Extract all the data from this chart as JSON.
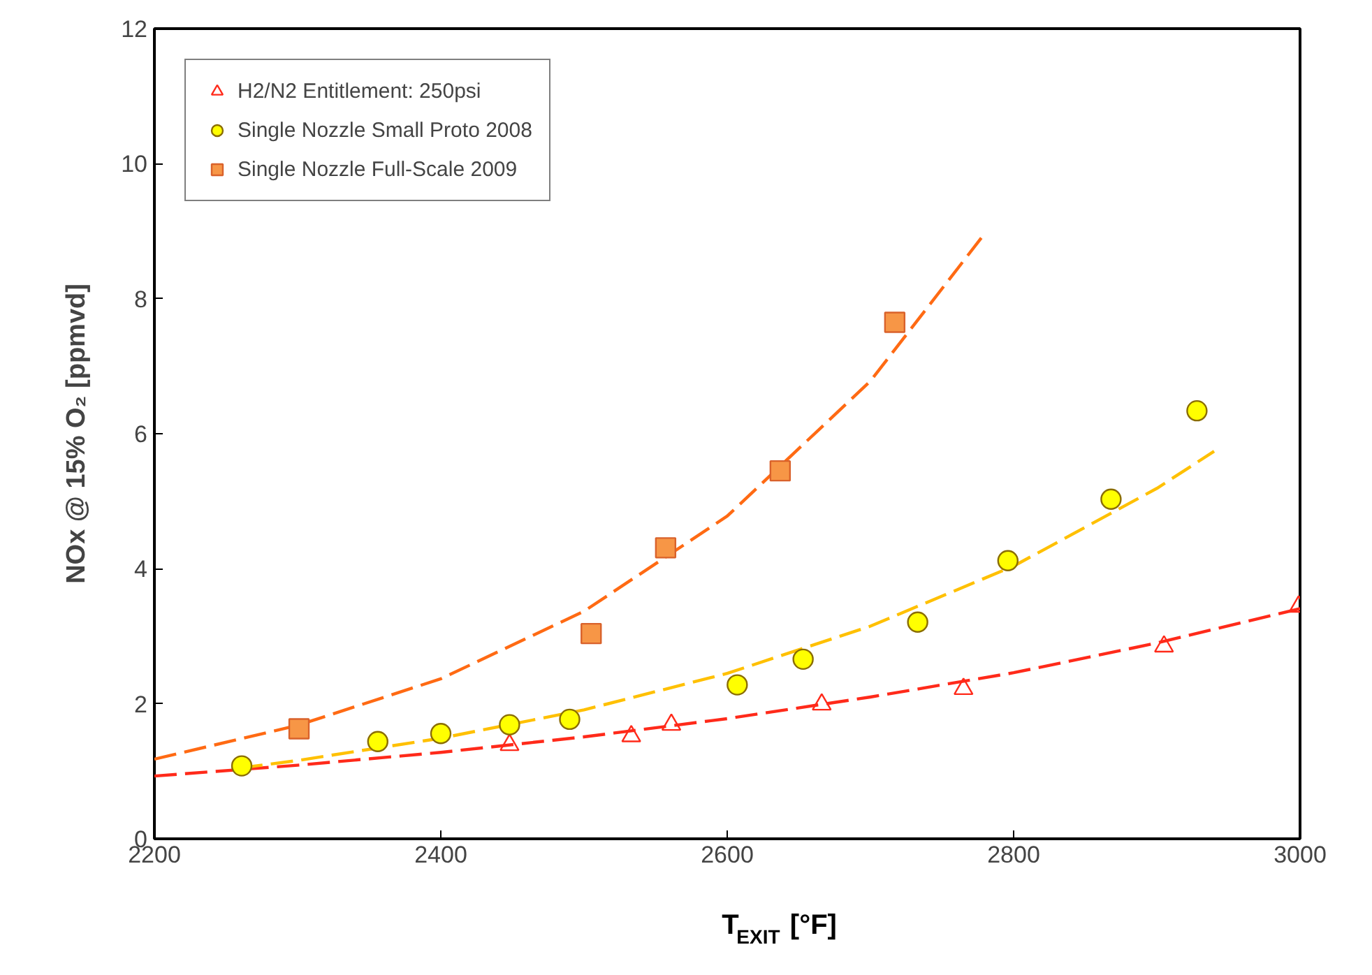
{
  "chart_data": {
    "type": "scatter",
    "xlabel": "T$_{EXIT}$ [°F]",
    "ylabel": "NOx @ 15% O₂ [ppmvd]",
    "xlim": [
      2200,
      3000
    ],
    "xticks": [
      2200,
      2400,
      2600,
      2800,
      3000
    ],
    "ylim": [
      0,
      12
    ],
    "yticks": [
      0,
      2,
      4,
      6,
      8,
      10,
      12
    ],
    "grid": false,
    "legend": "top left",
    "series": [
      {
        "type": "line",
        "color": "#ff2a1a",
        "line_style": "dashed",
        "marker": "none",
        "x": [
          2200,
          2300,
          2400,
          2500,
          2600,
          2700,
          2800,
          2900,
          3000
        ],
        "values": [
          0.93,
          1.09,
          1.28,
          1.51,
          1.78,
          2.1,
          2.46,
          2.9,
          3.41
        ]
      },
      {
        "type": "line",
        "color": "#ffc000",
        "line_style": "dashed",
        "marker": "none",
        "x": [
          2260,
          2300,
          2400,
          2500,
          2600,
          2700,
          2800,
          2900,
          2940
        ],
        "values": [
          1.05,
          1.16,
          1.49,
          1.91,
          2.45,
          3.15,
          4.04,
          5.19,
          5.74
        ]
      },
      {
        "type": "line",
        "color": "#ff6a13",
        "line_style": "dashed",
        "marker": "none",
        "x": [
          2200,
          2300,
          2400,
          2500,
          2600,
          2700,
          2780
        ],
        "values": [
          1.18,
          1.68,
          2.37,
          3.37,
          4.78,
          6.78,
          8.97
        ]
      },
      {
        "name": "H2/N2 Entitlement: 250psi",
        "color": "#ff2a1a",
        "marker": "triangle",
        "x": [
          2448,
          2533,
          2561,
          2666,
          2765,
          2905,
          2999
        ],
        "values": [
          1.39,
          1.52,
          1.69,
          1.99,
          2.22,
          2.85,
          3.44
        ]
      },
      {
        "name": "Single Nozzle Small Proto 2008",
        "color": "#ffff00",
        "marker": "circle",
        "x": [
          2261,
          2356,
          2400,
          2448,
          2490,
          2607,
          2653,
          2733,
          2796,
          2868,
          2928
        ],
        "values": [
          1.08,
          1.44,
          1.56,
          1.69,
          1.77,
          2.28,
          2.66,
          3.21,
          4.12,
          5.03,
          6.34
        ]
      },
      {
        "name": "Single Nozzle Full-Scale 2009",
        "color": "#f79646",
        "marker": "square",
        "x": [
          2301,
          2505,
          2557,
          2637,
          2717
        ],
        "values": [
          1.63,
          3.04,
          4.31,
          5.45,
          7.65
        ]
      }
    ]
  }
}
